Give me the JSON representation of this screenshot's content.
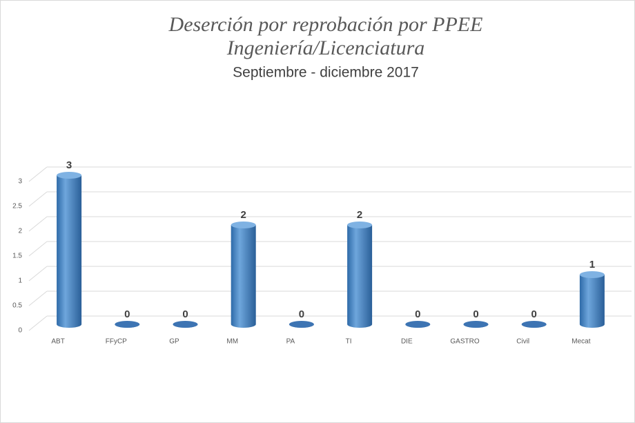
{
  "chart_data": {
    "type": "bar",
    "title": [
      "Deserción por reprobación por PPEE",
      "Ingeniería/Licenciatura"
    ],
    "subtitle": "Septiembre - diciembre 2017",
    "categories": [
      "ABT",
      "FFyCP",
      "GP",
      "MM",
      "PA",
      "TI",
      "DIE",
      "GASTRO",
      "Civil",
      "Mecat"
    ],
    "values": [
      3,
      0,
      0,
      2,
      0,
      2,
      0,
      0,
      0,
      1
    ],
    "color": "#4a86c8",
    "ylim": [
      0,
      3
    ],
    "yticks": [
      0,
      0.5,
      1,
      1.5,
      2,
      2.5,
      3
    ],
    "grid": true
  }
}
